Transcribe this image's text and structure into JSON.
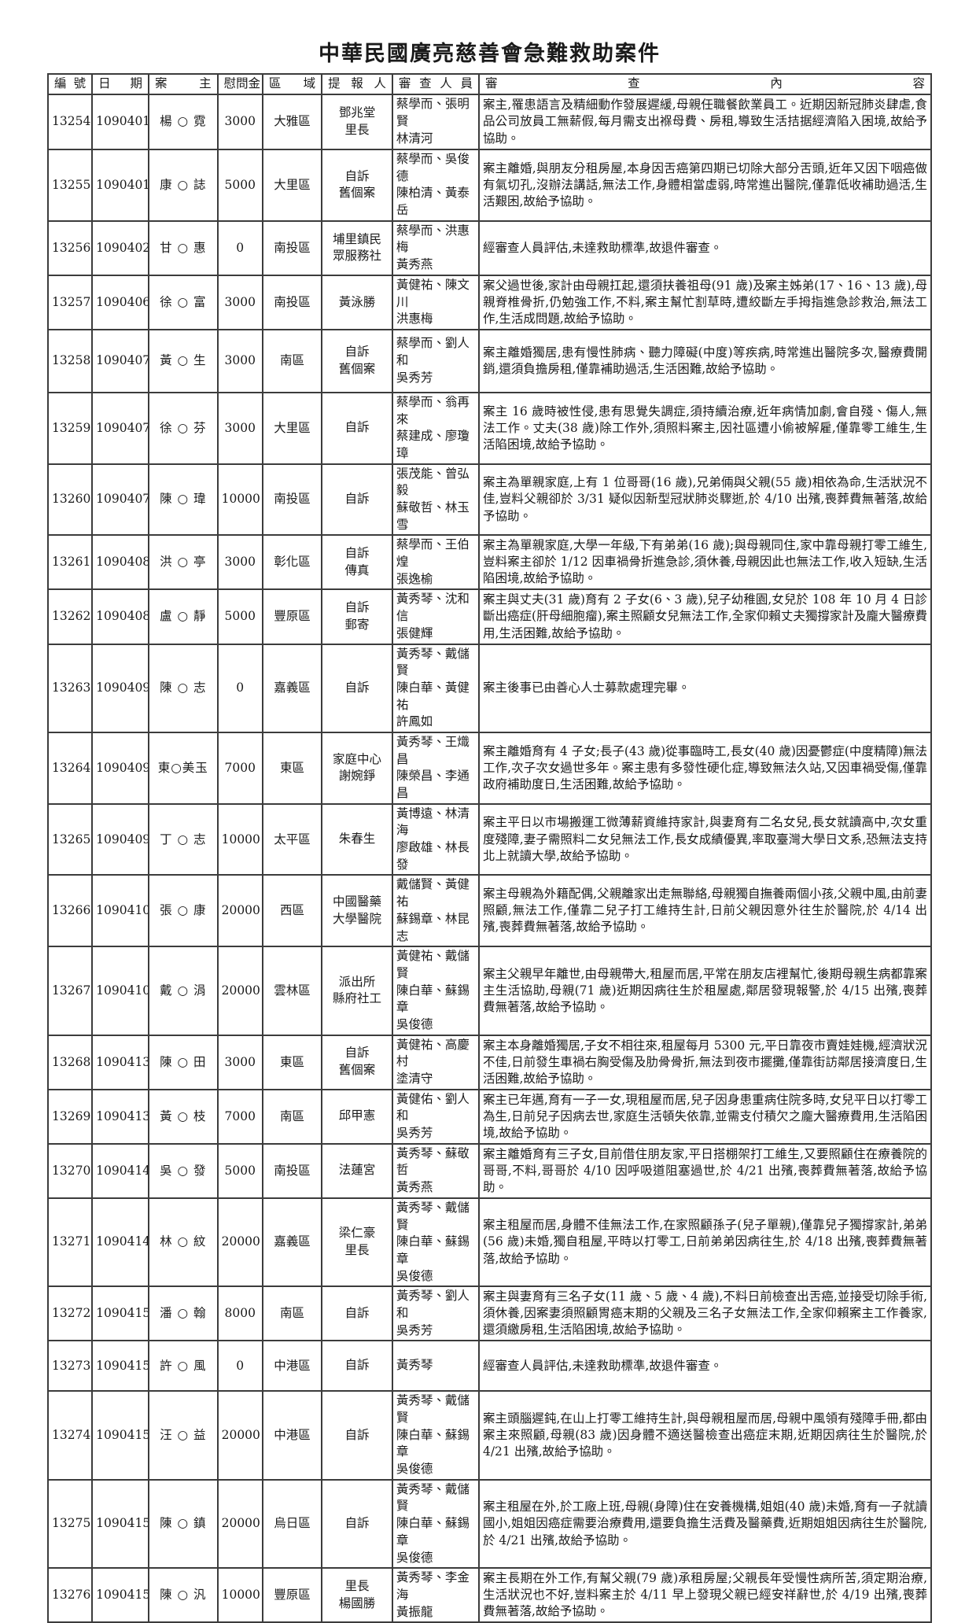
{
  "title": "中華民國廣亮慈善會急難救助案件",
  "headers": [
    "編 號",
    "日  期",
    "案   主",
    "慰問金",
    "區   域",
    "提 報 人",
    "審 查 人 員",
    "審　查　內　容"
  ],
  "rows": [
    {
      "id": "13254",
      "date": "1090401",
      "name": "楊 ○ 霓",
      "amount": "3000",
      "district": "大雅區",
      "reporter": [
        "鄧兆堂",
        "里長"
      ],
      "reviewers": [
        "蔡學而、張明賢",
        "林清河"
      ],
      "content": "案主,罹患語言及精細動作發展遲緩,母親任職餐飲業員工。近期因新冠肺炎肆虐,食品公司放員工無薪假,每月需支出褓母費、房租,導致生活拮据經濟陷入困境,故給予協助。"
    },
    {
      "id": "13255",
      "date": "1090401",
      "name": "康 ○ 誌",
      "amount": "5000",
      "district": "大里區",
      "reporter": [
        "自訴",
        "舊個案"
      ],
      "reviewers": [
        "蔡學而、吳俊德",
        "陳柏清、黃泰岳"
      ],
      "content": "案主離婚,與朋友分租房屋,本身因舌癌第四期已切除大部分舌頭,近年又因下咽癌做有氣切孔,沒辦法講話,無法工作,身體相當虛弱,時常進出醫院,僅靠低收補助過活,生活艱困,故給予協助。"
    },
    {
      "id": "13256",
      "date": "1090402",
      "name": "甘 ○ 惠",
      "amount": "0",
      "district": "南投區",
      "reporter": [
        "埔里鎮民",
        "眾服務社"
      ],
      "reviewers": [
        "蔡學而、洪惠梅",
        "黃秀燕"
      ],
      "content": "經審查人員評估,未達救助標準,故退件審查。"
    },
    {
      "id": "13257",
      "date": "1090406",
      "name": "徐 ○ 富",
      "amount": "3000",
      "district": "南投區",
      "reporter": [
        "黃泳勝"
      ],
      "reviewers": [
        "黃健祐、陳文川",
        "洪惠梅"
      ],
      "content": "案父過世後,家計由母親扛起,還須扶養祖母(91 歲)及案主姊弟(17、16、13 歲),母親脊椎骨折,仍勉強工作,不料,案主幫忙割草時,遭絞斷左手拇指進急診救治,無法工作,生活成問題,故給予協助。"
    },
    {
      "id": "13258",
      "date": "1090407",
      "name": "黃 ○ 生",
      "amount": "3000",
      "district": "南區",
      "reporter": [
        "自訴",
        "舊個案"
      ],
      "reviewers": [
        "蔡學而、劉人和",
        "吳秀芳"
      ],
      "content": "案主離婚獨居,患有慢性肺病、聽力障礙(中度)等疾病,時常進出醫院多次,醫療費開銷,還須負擔房租,僅靠補助過活,生活困難,故給予協助。"
    },
    {
      "id": "13259",
      "date": "1090407",
      "name": "徐 ○ 芬",
      "amount": "3000",
      "district": "大里區",
      "reporter": [
        "自訴"
      ],
      "reviewers": [
        "蔡學而、翁再來",
        "蔡建成、廖瓊璋"
      ],
      "content": "案主 16 歲時被性侵,患有思覺失調症,須持續治療,近年病情加劇,會自殘、傷人,無法工作。丈夫(38 歲)除工作外,須照料案主,因社區遭小偷被解雇,僅靠零工維生,生活陷困境,故給予協助。"
    },
    {
      "id": "13260",
      "date": "1090407",
      "name": "陳 ○ 瑋",
      "amount": "10000",
      "district": "南投區",
      "reporter": [
        "自訴"
      ],
      "reviewers": [
        "張茂能、曾弘毅",
        "蘇敬哲、林玉雪"
      ],
      "content": "案主為單親家庭,上有 1 位哥哥(16 歲),兄弟倆與父親(55 歲)相依為命,生活狀況不佳,豈料父親卻於 3/31 疑似因新型冠狀肺炎驟逝,於 4/10 出殯,喪葬費無著落,故給予協助。"
    },
    {
      "id": "13261",
      "date": "1090408",
      "name": "洪 ○ 亭",
      "amount": "3000",
      "district": "彰化區",
      "reporter": [
        "自訴",
        "傳真"
      ],
      "reviewers": [
        "蔡學而、王伯煌",
        "張逸榆"
      ],
      "content": "案主為單親家庭,大學一年級,下有弟弟(16 歲);與母親同住,家中靠母親打零工維生,豈料案主卻於 1/12 因車禍骨折進急診,須休養,母親因此也無法工作,收入短缺,生活陷困境,故給予協助。"
    },
    {
      "id": "13262",
      "date": "1090408",
      "name": "盧 ○ 靜",
      "amount": "5000",
      "district": "豐原區",
      "reporter": [
        "自訴",
        "郵寄"
      ],
      "reviewers": [
        "黃秀琴、沈和信",
        "張健輝"
      ],
      "content": "案主與丈夫(31 歲)育有 2 子女(6、3 歲),兒子幼稚園,女兒於 108 年 10 月 4 日診斷出癌症(肝母細胞瘤),案主照顧女兒無法工作,全家仰賴丈夫獨撐家計及龐大醫療費用,生活困難,故給予協助。"
    },
    {
      "id": "13263",
      "date": "1090409",
      "name": "陳 ○ 志",
      "amount": "0",
      "district": "嘉義區",
      "reporter": [
        "自訴"
      ],
      "reviewers": [
        "黃秀琴、戴儲賢",
        "陳白華、黃健祐",
        "許鳳如"
      ],
      "content": "案主後事已由善心人士募款處理完畢。"
    },
    {
      "id": "13264",
      "date": "1090409",
      "name": "東○美玉",
      "amount": "7000",
      "district": "東區",
      "reporter": [
        "家庭中心",
        "謝婉錚"
      ],
      "reviewers": [
        "黃秀琴、王熾昌",
        "陳榮昌、李通昌"
      ],
      "content": "案主離婚育有 4 子女;長子(43 歲)從事臨時工,長女(40 歲)因憂鬱症(中度精障)無法工作,次子次女過世多年。案主患有多發性硬化症,導致無法久站,又因車禍受傷,僅靠政府補助度日,生活困難,故給予協助。"
    },
    {
      "id": "13265",
      "date": "1090409",
      "name": "丁 ○ 志",
      "amount": "10000",
      "district": "太平區",
      "reporter": [
        "朱春生"
      ],
      "reviewers": [
        "黃博遠、林清海",
        "廖啟雄、林長發"
      ],
      "content": "案主平日以市場搬運工微薄薪資維持家計,與妻育有二名女兒,長女就讀高中,次女重度殘障,妻子需照料二女兒無法工作,長女成績優異,率取臺灣大學日文系,恐無法支持北上就讀大學,故給予協助。"
    },
    {
      "id": "13266",
      "date": "1090410",
      "name": "張 ○ 康",
      "amount": "20000",
      "district": "西區",
      "reporter": [
        "中國醫藥",
        "大學醫院"
      ],
      "reviewers": [
        "戴儲賢、黃健祐",
        "蘇錫章、林昆志"
      ],
      "content": "案主母親為外籍配偶,父親離家出走無聯絡,母親獨自撫養兩個小孩,父親中風,由前妻照顧,無法工作,僅靠二兒子打工維持生計,日前父親因意外往生於醫院,於 4/14 出殯,喪葬費無著落,故給予協助。"
    },
    {
      "id": "13267",
      "date": "1090410",
      "name": "戴 ○ 涓",
      "amount": "20000",
      "district": "雲林區",
      "reporter": [
        "派出所",
        "縣府社工"
      ],
      "reviewers": [
        "黃健祐、戴儲賢",
        "陳白華、蘇錫章",
        "吳俊德"
      ],
      "content": "案主父親早年離世,由母親帶大,租屋而居,平常在朋友店裡幫忙,後期母親生病都靠案主生活協助,母親(71 歲)近期因病往生於租屋處,鄰居發現報警,於 4/15 出殯,喪葬費無著落,故給予協助。"
    },
    {
      "id": "13268",
      "date": "1090413",
      "name": "陳 ○ 田",
      "amount": "3000",
      "district": "東區",
      "reporter": [
        "自訴",
        "舊個案"
      ],
      "reviewers": [
        "黃健祐、高慶村",
        "塗清守"
      ],
      "content": "案主本身離婚獨居,子女不相往來,租屋每月 5300 元,平日靠夜市賣娃娃機,經濟狀況不佳,日前發生車禍右胸受傷及肋骨骨折,無法到夜市擺攤,僅靠街訪鄰居接濟度日,生活困難,故給予協助。"
    },
    {
      "id": "13269",
      "date": "1090413",
      "name": "黃 ○ 枝",
      "amount": "7000",
      "district": "南區",
      "reporter": [
        "邱甲憲"
      ],
      "reviewers": [
        "黃健佑、劉人和",
        "吳秀芳"
      ],
      "content": "案主已年邁,育有一子一女,現租屋而居,兒子因身患重病住院多時,女兒平日以打零工為生,日前兒子因病去世,家庭生活頓失依靠,並需支付積欠之龐大醫療費用,生活陷困境,故給予協助。"
    },
    {
      "id": "13270",
      "date": "1090414",
      "name": "吳 ○ 發",
      "amount": "5000",
      "district": "南投區",
      "reporter": [
        "法蓮宮"
      ],
      "reviewers": [
        "黃秀琴、蘇敬哲",
        "黃秀燕"
      ],
      "content": "案主離婚育有三子女,目前借住朋友家,平日搭棚架打工維生,又要照顧住在療養院的哥哥,不料,哥哥於 4/10 因呼吸道阻塞過世,於 4/21 出殯,喪葬費無著落,故給予協助。"
    },
    {
      "id": "13271",
      "date": "1090414",
      "name": "林 ○ 紋",
      "amount": "20000",
      "district": "嘉義區",
      "reporter": [
        "梁仁豪",
        "里長"
      ],
      "reviewers": [
        "黃秀琴、戴儲賢",
        "陳白華、蘇錫章",
        "吳俊德"
      ],
      "content": "案主租屋而居,身體不佳無法工作,在家照顧孫子(兒子單親),僅靠兒子獨撐家計,弟弟(56 歲)未婚,獨自租屋,平時以打零工,日前弟弟因病往生,於 4/18 出殯,喪葬費無著落,故給予協助。"
    },
    {
      "id": "13272",
      "date": "1090415",
      "name": "潘 ○ 翰",
      "amount": "8000",
      "district": "南區",
      "reporter": [
        "自訴"
      ],
      "reviewers": [
        "黃秀琴、劉人和",
        "吳秀芳"
      ],
      "content": "案主與妻育有三名子女(11 歲、5 歲、4 歲),不料日前檢查出舌癌,並接受切除手術,須休養,因案妻須照顧胃癌末期的父親及三名子女無法工作,全家仰賴案主工作養家,還須繳房租,生活陷困境,故給予協助。"
    },
    {
      "id": "13273",
      "date": "1090415",
      "name": "許 ○ 風",
      "amount": "0",
      "district": "中港區",
      "reporter": [
        "自訴"
      ],
      "reviewers": [
        "黃秀琴"
      ],
      "content": "經審查人員評估,未達救助標準,故退件審查。"
    },
    {
      "id": "13274",
      "date": "1090415",
      "name": "汪 ○ 益",
      "amount": "20000",
      "district": "中港區",
      "reporter": [
        "自訴"
      ],
      "reviewers": [
        "黃秀琴、戴儲賢",
        "陳白華、蘇錫章",
        "吳俊德"
      ],
      "content": "案主頭腦遲鈍,在山上打零工維持生計,與母親租屋而居,母親中風領有殘障手冊,都由案主來照顧,母親(83 歲)因身體不適送醫檢查出癌症末期,近期因病往生於醫院,於 4/21 出殯,故給予協助。"
    },
    {
      "id": "13275",
      "date": "1090415",
      "name": "陳 ○ 鎮",
      "amount": "20000",
      "district": "烏日區",
      "reporter": [
        "自訴"
      ],
      "reviewers": [
        "黃秀琴、戴儲賢",
        "陳白華、蘇錫章",
        "吳俊德"
      ],
      "content": "案主租屋在外,於工廠上班,母親(身障)住在安養機構,姐姐(40 歲)未婚,育有一子就讀國小,姐姐因癌症需要治療費用,還要負擔生活費及醫藥費,近期姐姐因病往生於醫院,於 4/21 出殯,故給予協助。"
    },
    {
      "id": "13276",
      "date": "1090415",
      "name": "陳 ○ 汎",
      "amount": "10000",
      "district": "豐原區",
      "reporter": [
        "里長",
        "楊國勝"
      ],
      "reviewers": [
        "黃秀琴、李金海",
        "黃振龍"
      ],
      "content": "案主長期在外工作,有幫父親(79 歲)承租房屋;父親長年受慢性病所苦,須定期治療,生活狀況也不好,豈料案主於 4/11 早上發現父親已經安祥辭世,於 4/19 出殯,喪葬費無著落,故給予協助。"
    }
  ]
}
